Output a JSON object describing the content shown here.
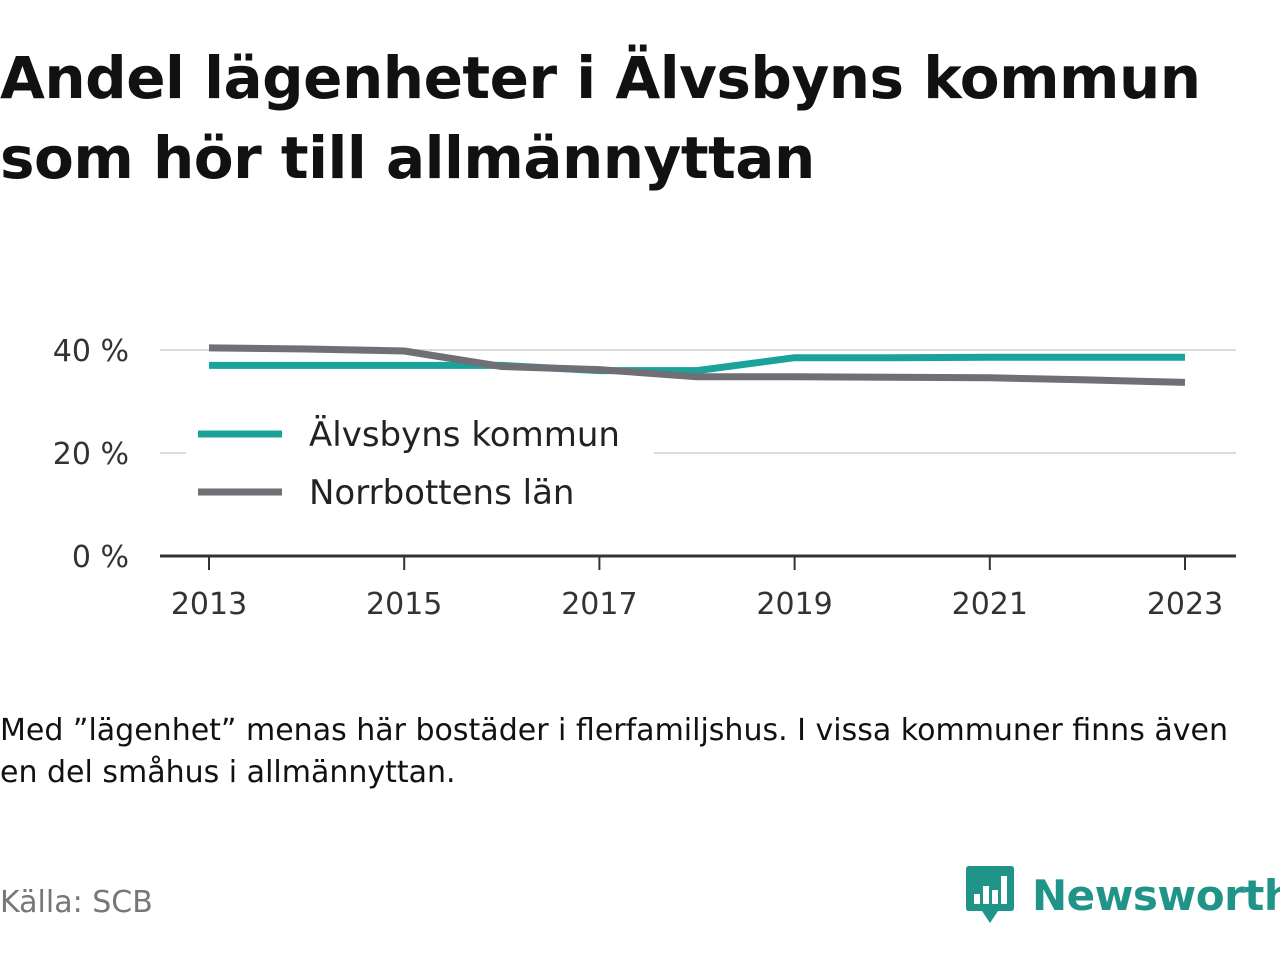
{
  "title": {
    "line1": "Andel lägenheter i Älvsbyns kommun",
    "line2": "som hör till allmännyttan"
  },
  "footnote": "Med ”lägenhet” menas här bostäder i flerfamiljshus. I vissa kommuner finns även en del småhus i allmännyttan.",
  "source": "Källa: SCB",
  "brand": {
    "name": "Newsworthy",
    "logo_icon": "bar-chart-speech-bubble-icon",
    "color": "#21948a"
  },
  "chart_data": {
    "type": "line",
    "x": [
      2013,
      2014,
      2015,
      2016,
      2017,
      2018,
      2019,
      2020,
      2021,
      2022,
      2023
    ],
    "x_ticks": [
      2013,
      2015,
      2017,
      2019,
      2021,
      2023
    ],
    "x_tick_labels": [
      "2013",
      "2015",
      "2017",
      "2019",
      "2021",
      "2023"
    ],
    "y_ticks": [
      0,
      20,
      40
    ],
    "y_tick_labels": [
      "0 %",
      "20 %",
      "40 %"
    ],
    "ylim": [
      0,
      40
    ],
    "grid": true,
    "legend_position": "middle-left",
    "series": [
      {
        "name": "Älvsbyns kommun",
        "color": "#1aa39a",
        "values": [
          37,
          37,
          37,
          37,
          36,
          36,
          38.5,
          38.5,
          38.6,
          38.6,
          38.6
        ]
      },
      {
        "name": "Norrbottens län",
        "color": "#6f6f75",
        "values": [
          40.4,
          40.2,
          39.8,
          36.8,
          36.2,
          34.8,
          34.8,
          34.7,
          34.6,
          34.2,
          33.7
        ]
      }
    ]
  }
}
